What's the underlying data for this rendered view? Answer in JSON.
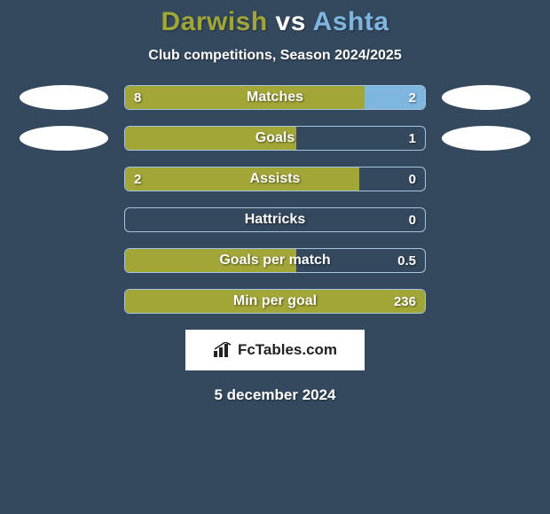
{
  "header": {
    "player1": "Darwish",
    "vs": "vs",
    "player2": "Ashta",
    "player1_color": "#a2a637",
    "vs_color": "#ffffff",
    "player2_color": "#7fb6e0",
    "subtitle": "Club competitions, Season 2024/2025"
  },
  "colors": {
    "background": "#34495e",
    "left_fill": "#a2a637",
    "right_fill": "#7fb6e0",
    "border": "#a7c5de",
    "text": "#ffffff"
  },
  "bars": [
    {
      "label": "Matches",
      "left_value": "8",
      "right_value": "2",
      "left_pct": 80,
      "right_pct": 20,
      "show_both_badges": true
    },
    {
      "label": "Goals",
      "left_value": "",
      "right_value": "1",
      "left_pct": 57,
      "right_pct": 0,
      "show_both_badges": true
    },
    {
      "label": "Assists",
      "left_value": "2",
      "right_value": "0",
      "left_pct": 78,
      "right_pct": 0,
      "show_both_badges": false
    },
    {
      "label": "Hattricks",
      "left_value": "",
      "right_value": "0",
      "left_pct": 0,
      "right_pct": 0,
      "show_both_badges": false
    },
    {
      "label": "Goals per match",
      "left_value": "",
      "right_value": "0.5",
      "left_pct": 57,
      "right_pct": 0,
      "show_both_badges": false
    },
    {
      "label": "Min per goal",
      "left_value": "",
      "right_value": "236",
      "left_pct": 100,
      "right_pct": 0,
      "show_both_badges": false
    }
  ],
  "footer": {
    "site_label": "FcTables.com",
    "date": "5 december 2024"
  }
}
